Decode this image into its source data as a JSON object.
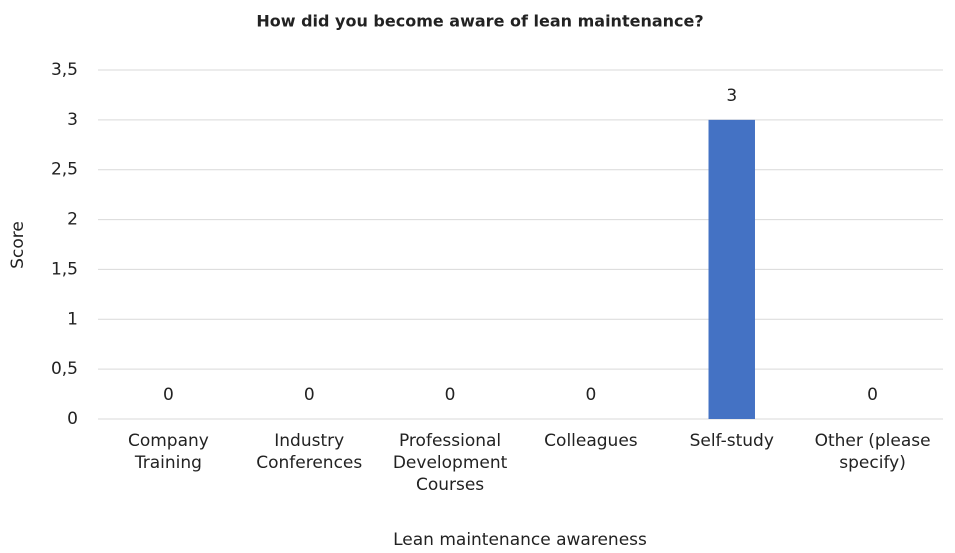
{
  "chart_data": {
    "type": "bar",
    "title": "How did you become aware of lean maintenance?",
    "x_label": "Lean maintenance awareness",
    "y_label": "Score",
    "categories": [
      "Company Training",
      "Industry Conferences",
      "Professional Development Courses",
      "Colleagues",
      "Self-study",
      "Other (please specify)"
    ],
    "values": [
      0,
      0,
      0,
      0,
      3,
      0
    ],
    "color": "#4472c4",
    "ylim": [
      0,
      3.5
    ],
    "yticks": [
      0,
      {
        "value": 0.5,
        "label": "0,5"
      },
      1,
      {
        "value": 1.5,
        "label": "1,5"
      },
      2,
      {
        "value": 2.5,
        "label": "2,5"
      },
      3,
      {
        "value": 3.5,
        "label": "3,5"
      }
    ],
    "grid": true
  }
}
